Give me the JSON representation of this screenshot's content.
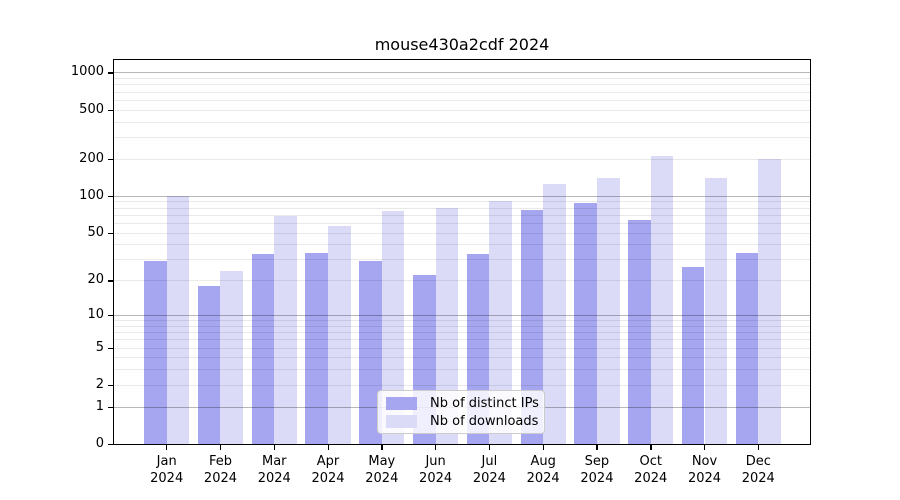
{
  "title": "mouse430a2cdf 2024",
  "chart_data": {
    "type": "bar",
    "title": "mouse430a2cdf 2024",
    "categories": [
      "Jan",
      "Feb",
      "Mar",
      "Apr",
      "May",
      "Jun",
      "Jul",
      "Aug",
      "Sep",
      "Oct",
      "Nov",
      "Dec"
    ],
    "x_year_label": "2024",
    "series": [
      {
        "name": "Nb of distinct IPs",
        "color": "#a5a5f0",
        "values": [
          29,
          18,
          33,
          34,
          29,
          22,
          33,
          76,
          88,
          64,
          26,
          34
        ]
      },
      {
        "name": "Nb of downloads",
        "color": "#dbdbf8",
        "values": [
          100,
          24,
          68,
          57,
          75,
          80,
          90,
          125,
          140,
          210,
          140,
          200
        ]
      }
    ],
    "y_scale": "log10(1+x)",
    "y_tick_values": [
      0,
      1,
      2,
      5,
      10,
      20,
      50,
      100,
      200,
      500,
      1000
    ],
    "y_major_gridline_values": [
      1,
      10,
      100,
      1000
    ],
    "y_minor_gridline_values": [
      2,
      3,
      4,
      5,
      6,
      7,
      8,
      9,
      20,
      30,
      40,
      50,
      60,
      70,
      80,
      90,
      200,
      300,
      400,
      500,
      600,
      700,
      800,
      900
    ],
    "ylim": [
      0,
      1285
    ],
    "grid": true,
    "legend_position": "lower center inside"
  },
  "colors": {
    "background": "#ffffff",
    "spine": "#000000",
    "bar_ips": "#a5a5f0",
    "bar_downloads": "#dbdbf8",
    "grid_major": "#b8b8b8",
    "grid_minor": "#e9e9e9"
  }
}
